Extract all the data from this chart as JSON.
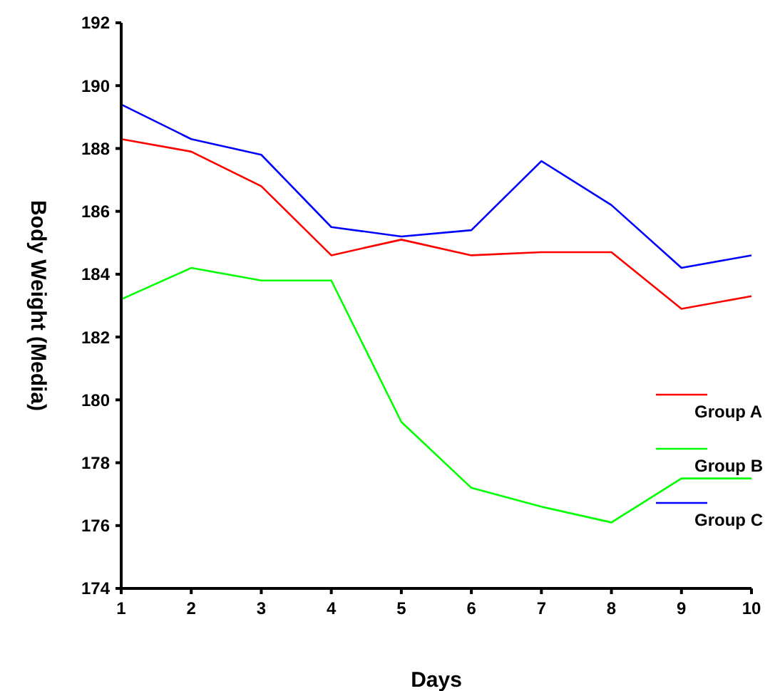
{
  "chart_data": {
    "type": "line",
    "xlabel": "Days",
    "ylabel": "Body Weight (Media)",
    "x": [
      1,
      2,
      3,
      4,
      5,
      6,
      7,
      8,
      9,
      10
    ],
    "xlim": [
      1,
      10
    ],
    "xticks": [
      1,
      2,
      3,
      4,
      5,
      6,
      7,
      8,
      9,
      10
    ],
    "ylim": [
      174,
      192
    ],
    "yticks": [
      174,
      176,
      178,
      180,
      182,
      184,
      186,
      188,
      190,
      192
    ],
    "legend": "right",
    "grid": false,
    "marker": "none",
    "line_style": "solid",
    "series": [
      {
        "name": "Group A",
        "color": "#ff0000",
        "values": [
          188.3,
          187.9,
          186.8,
          184.6,
          185.1,
          184.6,
          184.7,
          184.7,
          182.9,
          183.3
        ]
      },
      {
        "name": "Group B",
        "color": "#00ff00",
        "values": [
          183.2,
          184.2,
          183.8,
          183.8,
          179.3,
          177.2,
          176.6,
          176.1,
          177.5,
          177.5
        ]
      },
      {
        "name": "Group C",
        "color": "#0000ff",
        "values": [
          189.4,
          188.3,
          187.8,
          185.5,
          185.2,
          185.4,
          187.6,
          186.2,
          184.2,
          184.6
        ]
      }
    ]
  }
}
